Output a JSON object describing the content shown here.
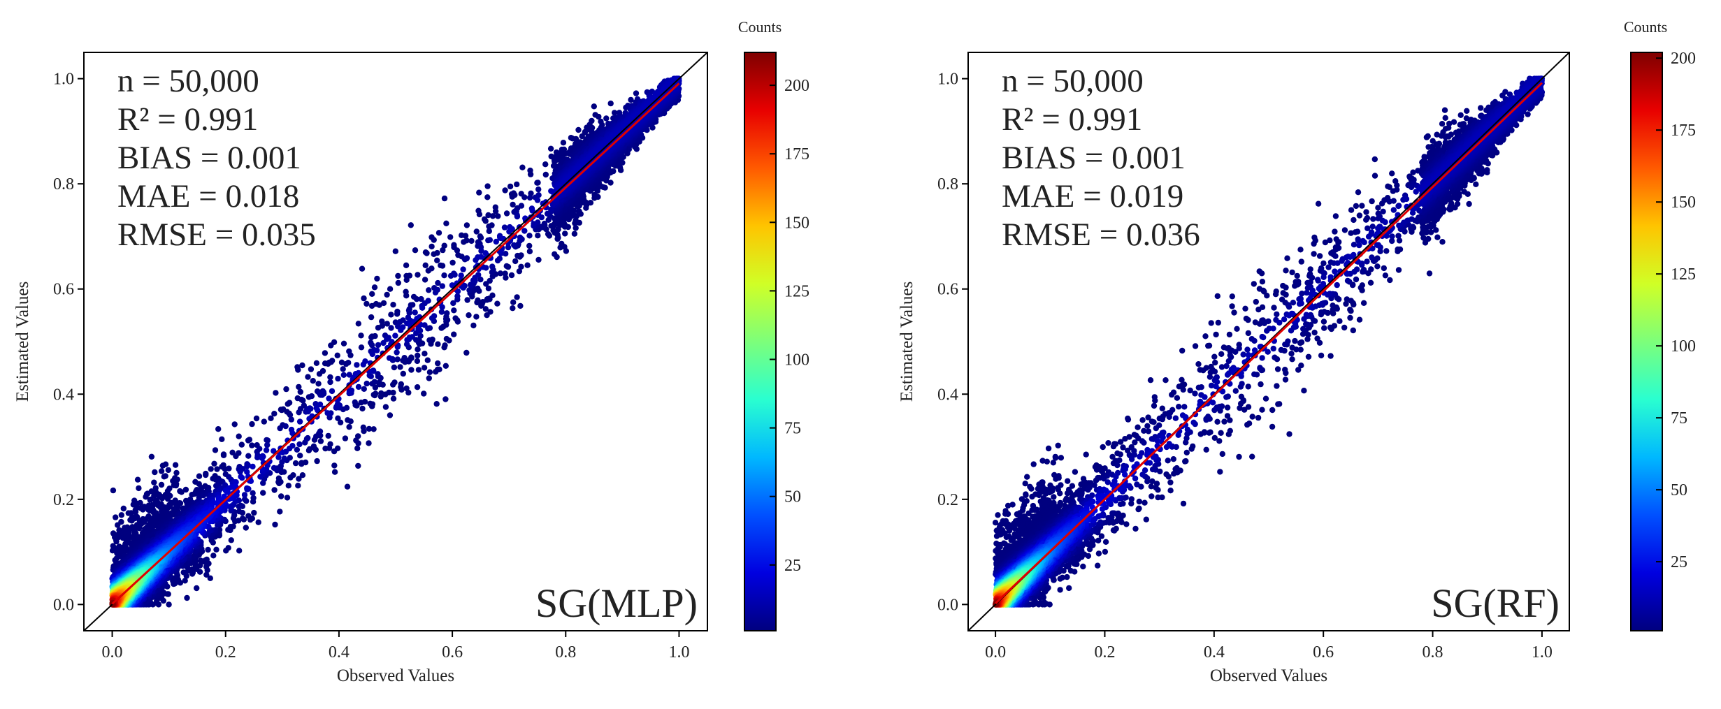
{
  "colorbar": {
    "title": "Counts",
    "colors": [
      "#00007f",
      "#0000e0",
      "#0050ff",
      "#00b8ff",
      "#2affd0",
      "#7dff7a",
      "#d0ff26",
      "#ffc400",
      "#ff5a00",
      "#e80000",
      "#7f0000"
    ]
  },
  "chart_data": [
    {
      "type": "scatter",
      "label": "SG(MLP)",
      "xlabel": "Observed Values",
      "ylabel": "Estimated Values",
      "xlim": [
        -0.05,
        1.05
      ],
      "ylim": [
        -0.05,
        1.05
      ],
      "x_ticks": [
        "0.0",
        "0.2",
        "0.4",
        "0.6",
        "0.8",
        "1.0"
      ],
      "y_ticks": [
        "0.0",
        "0.2",
        "0.4",
        "0.6",
        "0.8",
        "1.0"
      ],
      "stats": [
        "n = 50,000",
        "R² = 0.991",
        "BIAS = 0.001",
        "MAE = 0.018",
        "RMSE = 0.035"
      ],
      "reference_line": "1:1",
      "fit_line": {
        "slope": 0.99,
        "intercept": 0.001
      },
      "n": 50000,
      "r2": 0.991,
      "bias": 0.001,
      "mae": 0.018,
      "rmse": 0.035,
      "colorbar": {
        "title": "Counts",
        "min": 1,
        "max": 212,
        "ticks": [
          25,
          50,
          75,
          100,
          125,
          150,
          175,
          200
        ]
      }
    },
    {
      "type": "scatter",
      "label": "SG(RF)",
      "xlabel": "Observed Values",
      "ylabel": "Estimated Values",
      "xlim": [
        -0.05,
        1.05
      ],
      "ylim": [
        -0.05,
        1.05
      ],
      "x_ticks": [
        "0.0",
        "0.2",
        "0.4",
        "0.6",
        "0.8",
        "1.0"
      ],
      "y_ticks": [
        "0.0",
        "0.2",
        "0.4",
        "0.6",
        "0.8",
        "1.0"
      ],
      "stats": [
        "n = 50,000",
        "R² = 0.991",
        "BIAS = 0.001",
        "MAE = 0.019",
        "RMSE = 0.036"
      ],
      "reference_line": "1:1",
      "fit_line": {
        "slope": 0.99,
        "intercept": 0.002
      },
      "n": 50000,
      "r2": 0.991,
      "bias": 0.001,
      "mae": 0.019,
      "rmse": 0.036,
      "colorbar": {
        "title": "Counts",
        "min": 1,
        "max": 202,
        "ticks": [
          25,
          50,
          75,
          100,
          125,
          150,
          175,
          200
        ]
      }
    }
  ]
}
